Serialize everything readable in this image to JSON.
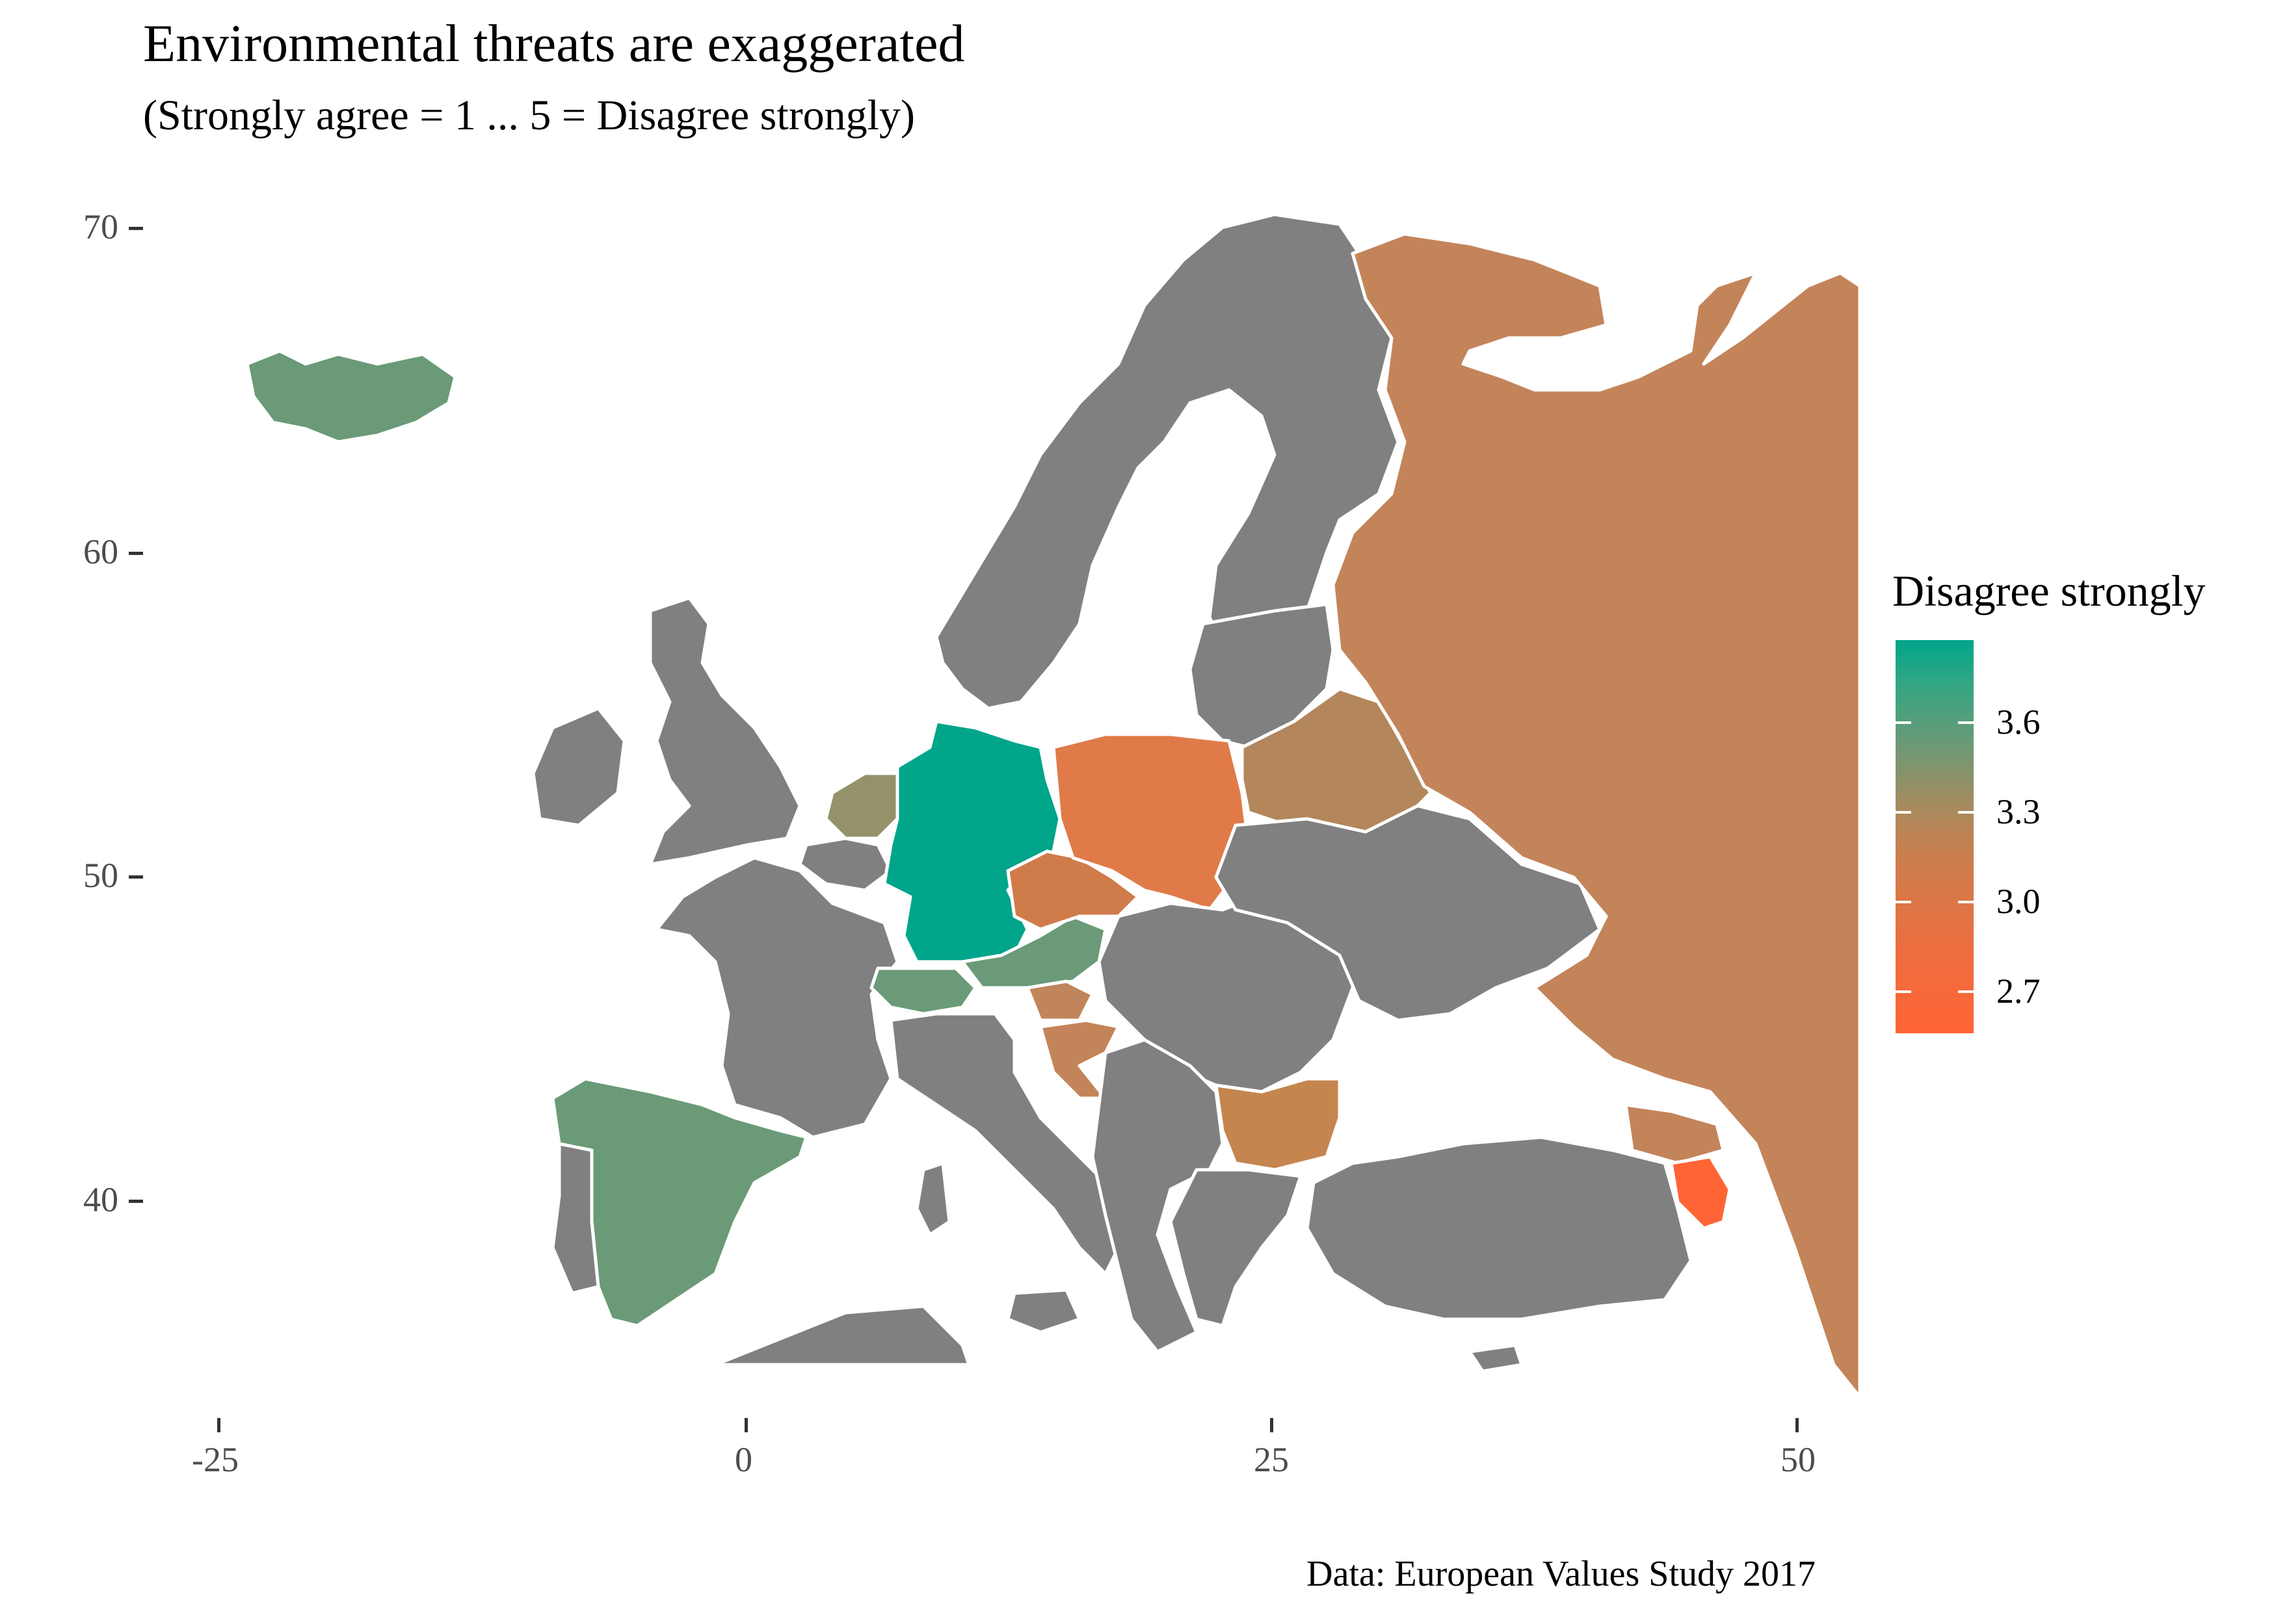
{
  "title": "Environmental threats are exaggerated",
  "subtitle": "(Strongly agree = 1 ... 5 = Disagree strongly)",
  "caption": "Data: European Values Study 2017",
  "legend": {
    "title": "Disagree strongly",
    "labels": [
      "3.6",
      "3.3",
      "3.0",
      "2.7"
    ]
  },
  "axes": {
    "y_labels": [
      "70",
      "60",
      "50",
      "40"
    ],
    "x_labels": [
      "-25",
      "0",
      "25",
      "50"
    ]
  },
  "colors": {
    "no_data": "#808080",
    "high": "#00a58a",
    "low": "#ff6434",
    "border": "#ffffff"
  },
  "chart_data": {
    "type": "choropleth",
    "variable": "Environmental threats are exaggerated",
    "scale": {
      "min_color": "#ff6434",
      "max_color": "#00a58a",
      "range": [
        2.55,
        3.85
      ]
    },
    "xlim": [
      -25,
      50
    ],
    "ylim": [
      35,
      71
    ],
    "regions": [
      {
        "name": "Germany",
        "value": 3.85
      },
      {
        "name": "Iceland",
        "value": 3.6
      },
      {
        "name": "Spain",
        "value": 3.6
      },
      {
        "name": "Switzerland",
        "value": 3.6
      },
      {
        "name": "Austria",
        "value": 3.6
      },
      {
        "name": "Netherlands",
        "value": 3.45
      },
      {
        "name": "Belarus",
        "value": 3.3
      },
      {
        "name": "Bulgaria",
        "value": 3.2
      },
      {
        "name": "Russia",
        "value": 3.15
      },
      {
        "name": "Slovenia",
        "value": 3.2
      },
      {
        "name": "Croatia",
        "value": 3.15
      },
      {
        "name": "Georgia",
        "value": 3.15
      },
      {
        "name": "Czechia",
        "value": 3.05
      },
      {
        "name": "Poland",
        "value": 2.95
      },
      {
        "name": "Armenia",
        "value": 2.6
      }
    ]
  }
}
